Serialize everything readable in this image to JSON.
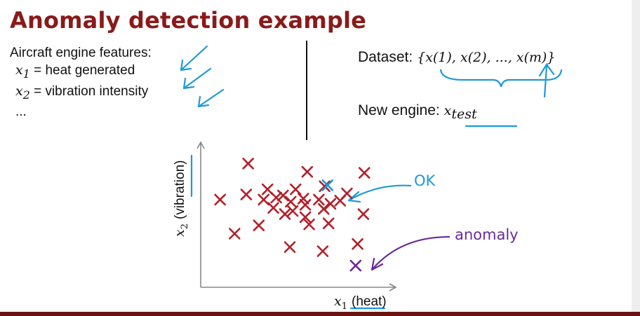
{
  "title": "Anomaly detection example",
  "features": {
    "heading": "Aircraft engine features:",
    "items": [
      {
        "var": "x",
        "sub": "1",
        "desc": "= heat generated"
      },
      {
        "var": "x",
        "sub": "2",
        "desc": "= vibration intensity"
      }
    ],
    "more": "..."
  },
  "dataset": {
    "label": "Dataset:",
    "open_brace": "{",
    "formula": "x(1), x(2), ..., x(m)",
    "close_brace": "}"
  },
  "new_engine": {
    "label": "New engine:",
    "var": "x",
    "sub": "test"
  },
  "annotations": {
    "ok": "OK",
    "anomaly": "anomaly"
  },
  "colors": {
    "title": "#8a1a1a",
    "normal_points": "#b3202a",
    "ok_point": "#1e9ad8",
    "anomaly_point": "#6a2a9a",
    "ink_blue": "#1e9ad8",
    "ink_purple": "#6a2a9a"
  },
  "chart_data": {
    "type": "scatter",
    "xlabel": "x1 (heat)",
    "ylabel": "x2 (vibration)",
    "xlabel_var": "x",
    "xlabel_sub": "1",
    "xlabel_text": "(heat)",
    "ylabel_var": "x",
    "ylabel_sub": "2",
    "ylabel_text": "(vibration)",
    "xlim": [
      0,
      10
    ],
    "ylim": [
      0,
      7
    ],
    "grid": false,
    "series": [
      {
        "points": [
          [
            2.45,
            6.0
          ],
          [
            5.5,
            5.6
          ],
          [
            8.45,
            5.55
          ],
          [
            3.45,
            4.75
          ],
          [
            4.9,
            4.75
          ],
          [
            6.4,
            4.9
          ],
          [
            2.35,
            4.5
          ],
          [
            3.9,
            4.35
          ],
          [
            4.25,
            4.45
          ],
          [
            4.65,
            4.15
          ],
          [
            5.3,
            4.3
          ],
          [
            6.1,
            4.25
          ],
          [
            7.55,
            4.55
          ],
          [
            1.0,
            4.25
          ],
          [
            3.25,
            4.25
          ],
          [
            5.4,
            4.0
          ],
          [
            6.7,
            4.05
          ],
          [
            7.2,
            4.2
          ],
          [
            3.75,
            3.85
          ],
          [
            4.75,
            3.7
          ],
          [
            6.35,
            3.8
          ],
          [
            4.35,
            3.55
          ],
          [
            5.4,
            3.4
          ],
          [
            8.4,
            3.55
          ],
          [
            1.75,
            2.6
          ],
          [
            3.0,
            3.0
          ],
          [
            5.6,
            3.05
          ],
          [
            6.6,
            3.1
          ],
          [
            8.1,
            2.1
          ],
          [
            4.6,
            1.95
          ],
          [
            6.3,
            1.75
          ]
        ]
      },
      {
        "points": [
          [
            6.55,
            4.95
          ]
        ]
      },
      {
        "points": [
          [
            8.0,
            1.05
          ]
        ]
      }
    ]
  }
}
